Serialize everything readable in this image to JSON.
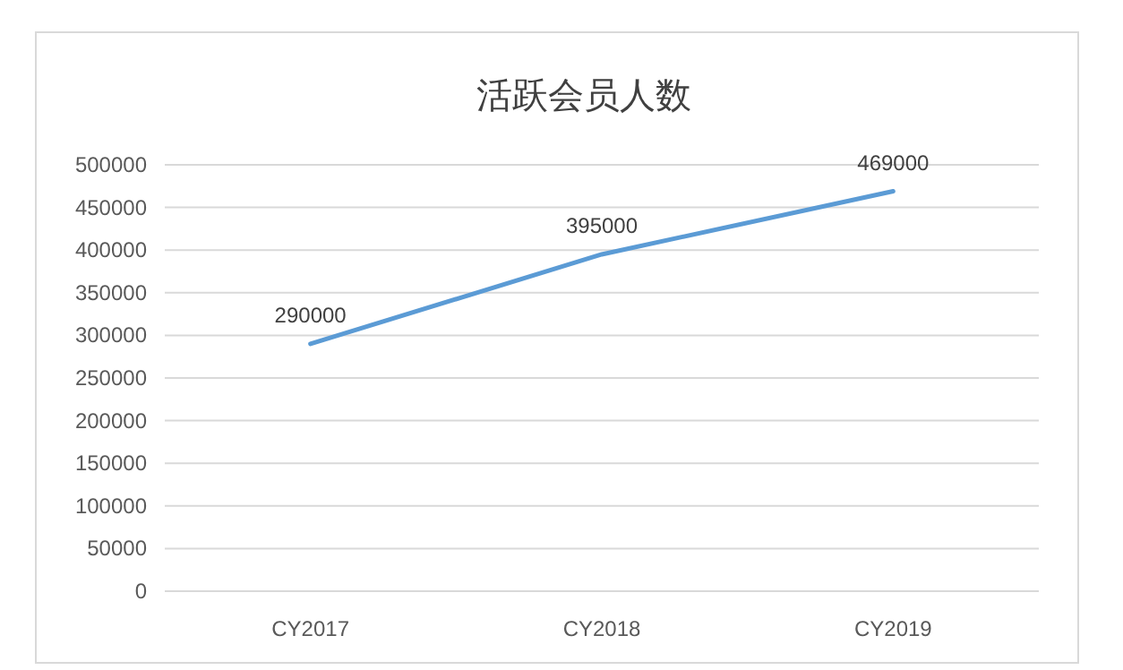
{
  "chart_data": {
    "type": "line",
    "title": "活跃会员人数",
    "categories": [
      "CY2017",
      "CY2018",
      "CY2019"
    ],
    "series": [
      {
        "color": "#5b9bd5",
        "values": [
          290000,
          395000,
          469000
        ]
      }
    ],
    "ylim": [
      0,
      500000
    ],
    "yticks": [
      0,
      50000,
      100000,
      150000,
      200000,
      250000,
      300000,
      350000,
      400000,
      450000,
      500000
    ],
    "grid": "y",
    "data_labels": true,
    "marker": "none",
    "line_style": "solid"
  }
}
